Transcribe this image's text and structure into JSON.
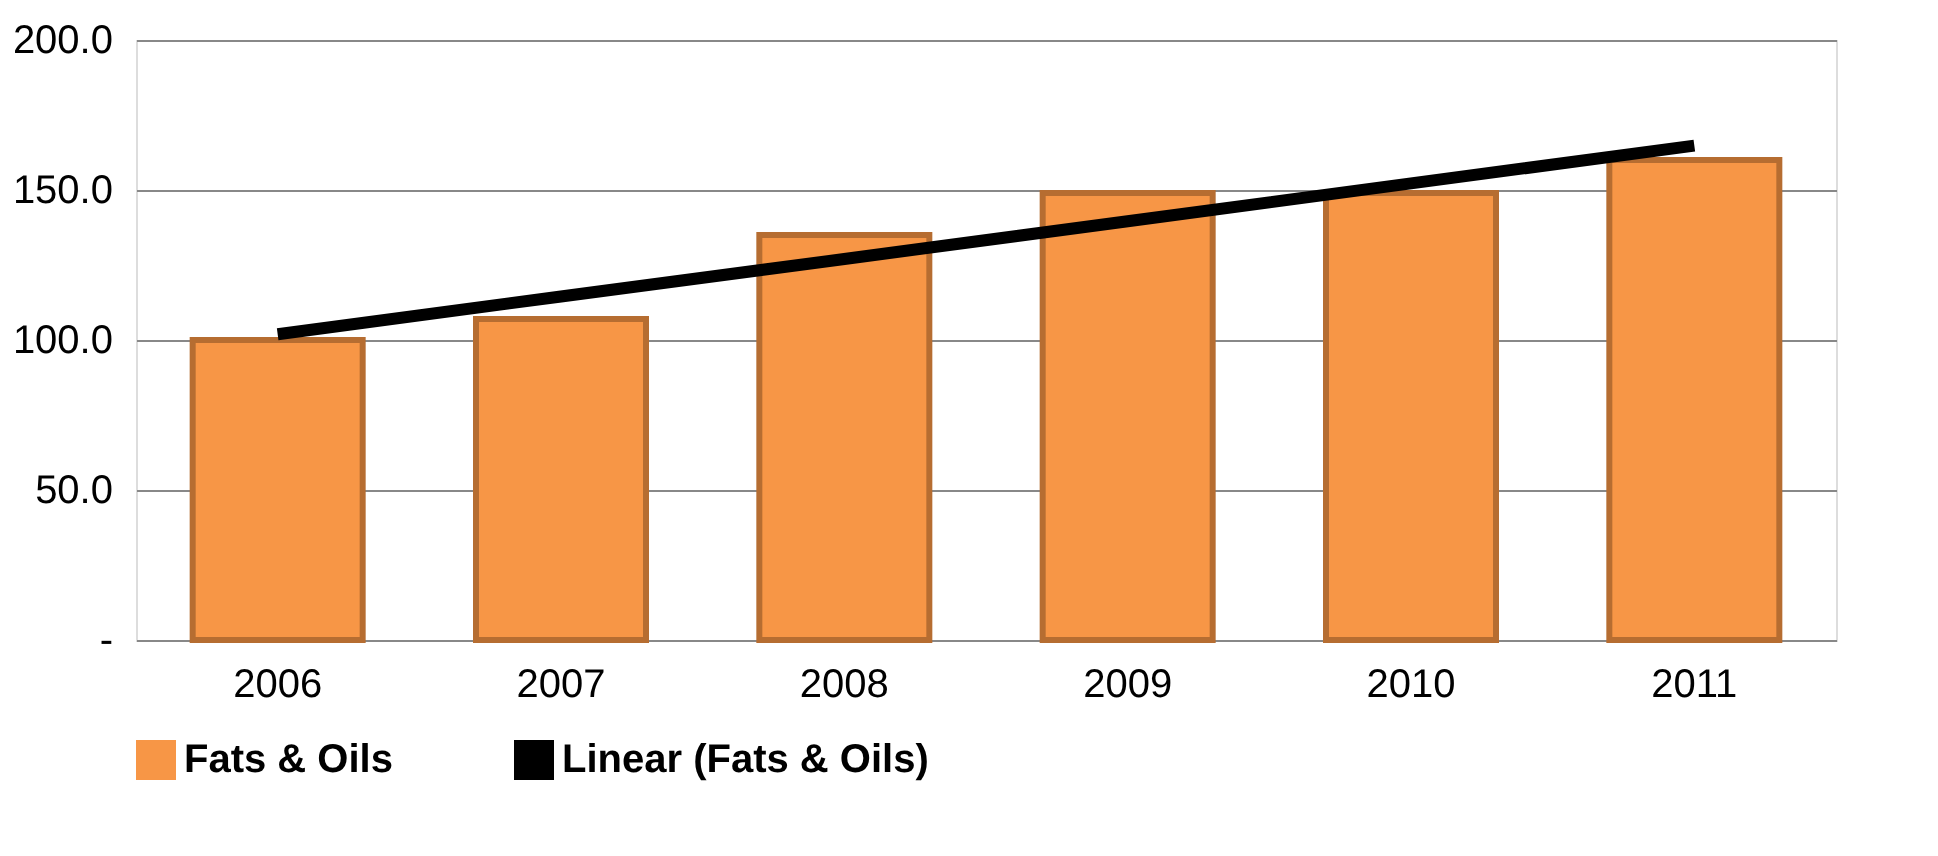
{
  "chart_data": {
    "type": "bar",
    "categories": [
      "2006",
      "2007",
      "2008",
      "2009",
      "2010",
      "2011"
    ],
    "series": [
      {
        "name": "Fats & Oils",
        "color": "#f79646",
        "values": [
          100,
          107,
          135,
          149,
          149,
          160
        ]
      },
      {
        "name": "Linear (Fats & Oils)",
        "type": "line",
        "color": "#000000",
        "values": [
          101.9,
          114.5,
          127.0,
          139.6,
          152.2,
          164.8
        ]
      }
    ],
    "ylim": [
      0,
      200
    ],
    "yticks": [
      {
        "value": 0,
        "label": "-"
      },
      {
        "value": 50,
        "label": "50.0"
      },
      {
        "value": 100,
        "label": "100.0"
      },
      {
        "value": 150,
        "label": "150.0"
      },
      {
        "value": 200,
        "label": "200.0"
      }
    ],
    "grid": "y",
    "legend": "bottom"
  }
}
